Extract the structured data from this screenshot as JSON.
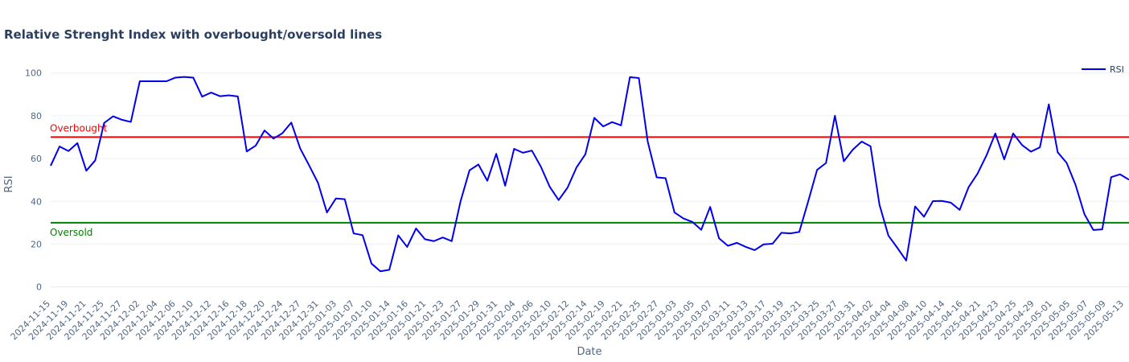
{
  "chart_data": {
    "type": "line",
    "title": "Relative Strenght Index with overbought/oversold lines",
    "xlabel": "Date",
    "ylabel": "RSI",
    "ylim": [
      -5,
      110
    ],
    "yticks": [
      0,
      20,
      40,
      60,
      80,
      100
    ],
    "xtick_labels": [
      "2024-11-15",
      "2024-11-19",
      "2024-11-21",
      "2024-11-25",
      "2024-11-27",
      "2024-12-02",
      "2024-12-04",
      "2024-12-06",
      "2024-12-10",
      "2024-12-12",
      "2024-12-16",
      "2024-12-18",
      "2024-12-20",
      "2024-12-24",
      "2024-12-27",
      "2024-12-31",
      "2025-01-03",
      "2025-01-07",
      "2025-01-10",
      "2025-01-14",
      "2025-01-16",
      "2025-01-21",
      "2025-01-23",
      "2025-01-27",
      "2025-01-29",
      "2025-01-31",
      "2025-02-04",
      "2025-02-06",
      "2025-02-10",
      "2025-02-12",
      "2025-02-14",
      "2025-02-19",
      "2025-02-21",
      "2025-02-25",
      "2025-02-27",
      "2025-03-03",
      "2025-03-05",
      "2025-03-07",
      "2025-03-11",
      "2025-03-13",
      "2025-03-17",
      "2025-03-19",
      "2025-03-21",
      "2025-03-25",
      "2025-03-27",
      "2025-03-31",
      "2025-04-02",
      "2025-04-04",
      "2025-04-08",
      "2025-04-10",
      "2025-04-14",
      "2025-04-16",
      "2025-04-21",
      "2025-04-23",
      "2025-04-25",
      "2025-04-29",
      "2025-05-01",
      "2025-05-05",
      "2025-05-07",
      "2025-05-09",
      "2025-05-13"
    ],
    "grid": true,
    "legend_position": "top-right",
    "series": [
      {
        "name": "RSI",
        "color": "#0000ee",
        "values": [
          56.6,
          65.6,
          63.5,
          67.2,
          54.3,
          59.1,
          76.6,
          79.7,
          78.1,
          77.1,
          96.1,
          96.1,
          96.1,
          96.1,
          97.8,
          98.1,
          97.8,
          88.9,
          90.8,
          89.1,
          89.5,
          89.0,
          63.3,
          66.0,
          73.1,
          69.3,
          71.8,
          76.8,
          64.7,
          56.8,
          48.6,
          34.8,
          41.3,
          41.0,
          25.0,
          24.2,
          10.9,
          7.3,
          8.0,
          24.1,
          18.7,
          27.3,
          22.3,
          21.4,
          23.1,
          21.4,
          40.1,
          54.5,
          57.2,
          49.6,
          62.2,
          47.3,
          64.5,
          62.7,
          63.7,
          56.2,
          46.8,
          40.6,
          46.4,
          55.8,
          62.0,
          79.0,
          75.0,
          77.0,
          75.5,
          98.0,
          97.6,
          67.8,
          51.2,
          50.8,
          34.8,
          32.0,
          30.4,
          26.7,
          37.4,
          22.7,
          19.2,
          20.6,
          18.7,
          17.2,
          19.9,
          20.2,
          25.3,
          25.0,
          25.7,
          39.9,
          54.7,
          57.9,
          80.0,
          58.7,
          64.1,
          67.9,
          65.7,
          38.4,
          24.0,
          18.3,
          12.3,
          37.6,
          32.8,
          40.1,
          40.2,
          39.4,
          36.0,
          46.6,
          52.9,
          61.4,
          71.7,
          59.6,
          71.7,
          66.3,
          63.2,
          65.2,
          85.3,
          62.9,
          58.0,
          47.7,
          34.0,
          26.6,
          26.9,
          51.3,
          52.6,
          50.1
        ]
      }
    ],
    "reference_lines": [
      {
        "label": "Overbought",
        "value": 70,
        "color": "#ff0000"
      },
      {
        "label": "Oversold",
        "value": 30,
        "color": "#008000"
      }
    ]
  }
}
